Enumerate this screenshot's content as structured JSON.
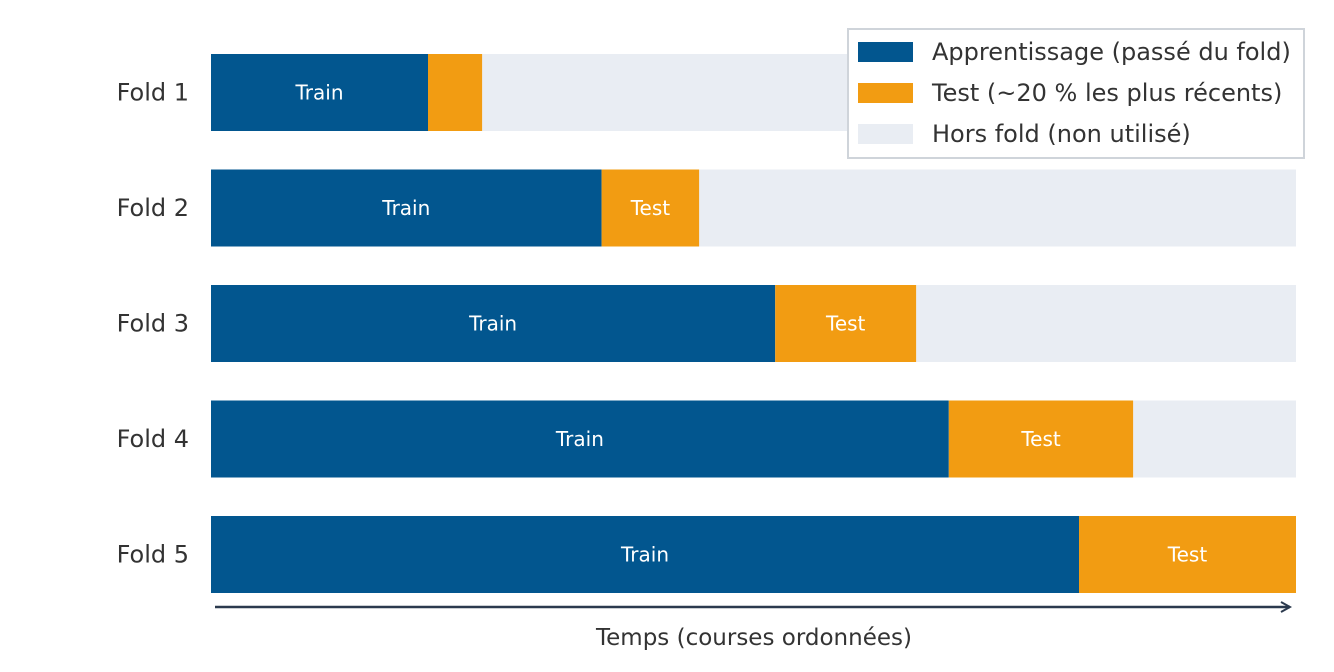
{
  "chart_data": {
    "type": "bar",
    "orientation": "horizontal",
    "stacked": true,
    "title": "",
    "xlabel": "Temps (courses ordonnées)",
    "ylabel": "",
    "xlim": [
      0,
      100
    ],
    "grid": false,
    "legend_position": "top-right",
    "colors": {
      "train": "#02568f",
      "test": "#f29c12",
      "unused": "#e9edf3"
    },
    "segment_labels": {
      "train": "Train",
      "test": "Test"
    },
    "legend": [
      {
        "key": "train",
        "label": "Apprentissage (passé du fold)",
        "color": "#02568f"
      },
      {
        "key": "test",
        "label": "Test (~20 % les plus récents)",
        "color": "#f29c12"
      },
      {
        "key": "unused",
        "label": "Hors fold (non utilisé)",
        "color": "#e9edf3"
      }
    ],
    "categories": [
      "Fold 1",
      "Fold 2",
      "Fold 3",
      "Fold 4",
      "Fold 5"
    ],
    "series": [
      {
        "key": "train",
        "values": [
          20,
          36,
          52,
          68,
          80
        ]
      },
      {
        "key": "test",
        "values": [
          5,
          9,
          13,
          17,
          20
        ]
      },
      {
        "key": "unused",
        "values": [
          75,
          55,
          35,
          15,
          0
        ]
      }
    ]
  }
}
